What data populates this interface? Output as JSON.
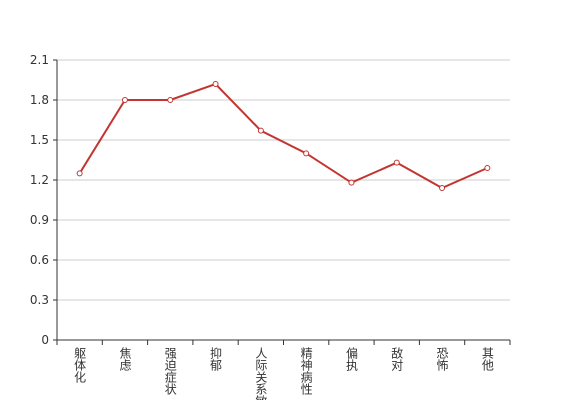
{
  "chart_data": {
    "type": "line",
    "categories": [
      "躯体化",
      "焦虑",
      "强迫症状",
      "抑郁",
      "人际关系敏感",
      "精神病性",
      "偏执",
      "敌对",
      "恐怖",
      "其他"
    ],
    "values": [
      1.25,
      1.8,
      1.8,
      1.92,
      1.57,
      1.4,
      1.18,
      1.33,
      1.14,
      1.29
    ],
    "color": "#c23531",
    "ylim": [
      0,
      2.1
    ],
    "yticks": [
      0,
      0.3,
      0.6,
      0.9,
      1.2,
      1.5,
      1.8,
      2.1
    ],
    "grid": true
  }
}
